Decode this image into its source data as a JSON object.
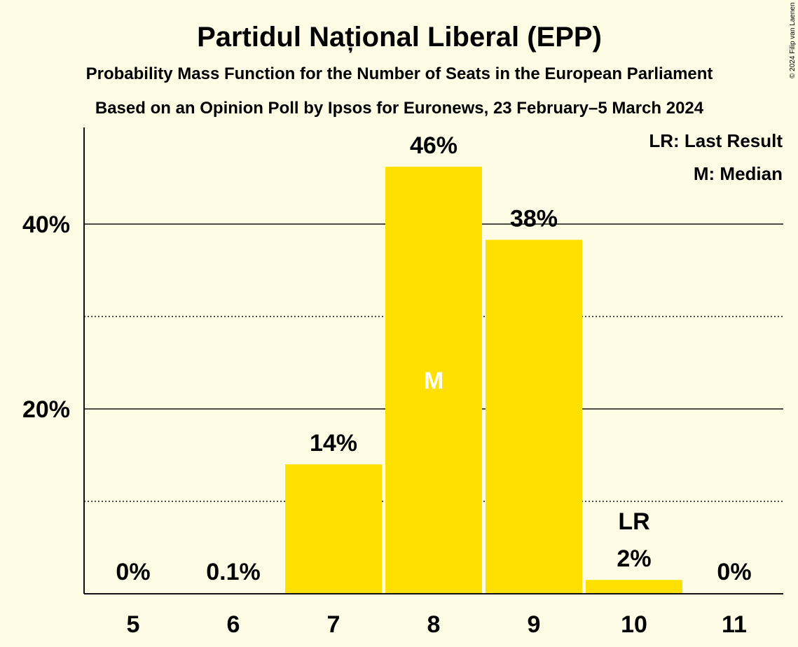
{
  "chart_data": {
    "type": "bar",
    "title": "Partidul Național Liberal (EPP)",
    "subtitle": "Probability Mass Function for the Number of Seats in the European Parliament",
    "subtitle2": "Based on an Opinion Poll by Ipsos for Euronews, 23 February–5 March 2024",
    "categories": [
      "5",
      "6",
      "7",
      "8",
      "9",
      "10",
      "11"
    ],
    "values": [
      0,
      0.1,
      14,
      46.2,
      38.3,
      1.5,
      0
    ],
    "value_labels": [
      "0%",
      "0.1%",
      "14%",
      "46%",
      "38%",
      "2%",
      "0%"
    ],
    "ylim": [
      0,
      50
    ],
    "y_ticks": [
      20,
      40
    ],
    "y_tick_labels": [
      "20%",
      "40%"
    ],
    "minor_grid": [
      10,
      30
    ],
    "bar_color": "#FFE000",
    "median": {
      "category": "8",
      "label": "M"
    },
    "last_result": {
      "category": "10",
      "label": "LR"
    },
    "legend": [
      "LR: Last Result",
      "M: Median"
    ],
    "legend_position": "top-right",
    "copyright": "© 2024 Filip van Laenen"
  }
}
